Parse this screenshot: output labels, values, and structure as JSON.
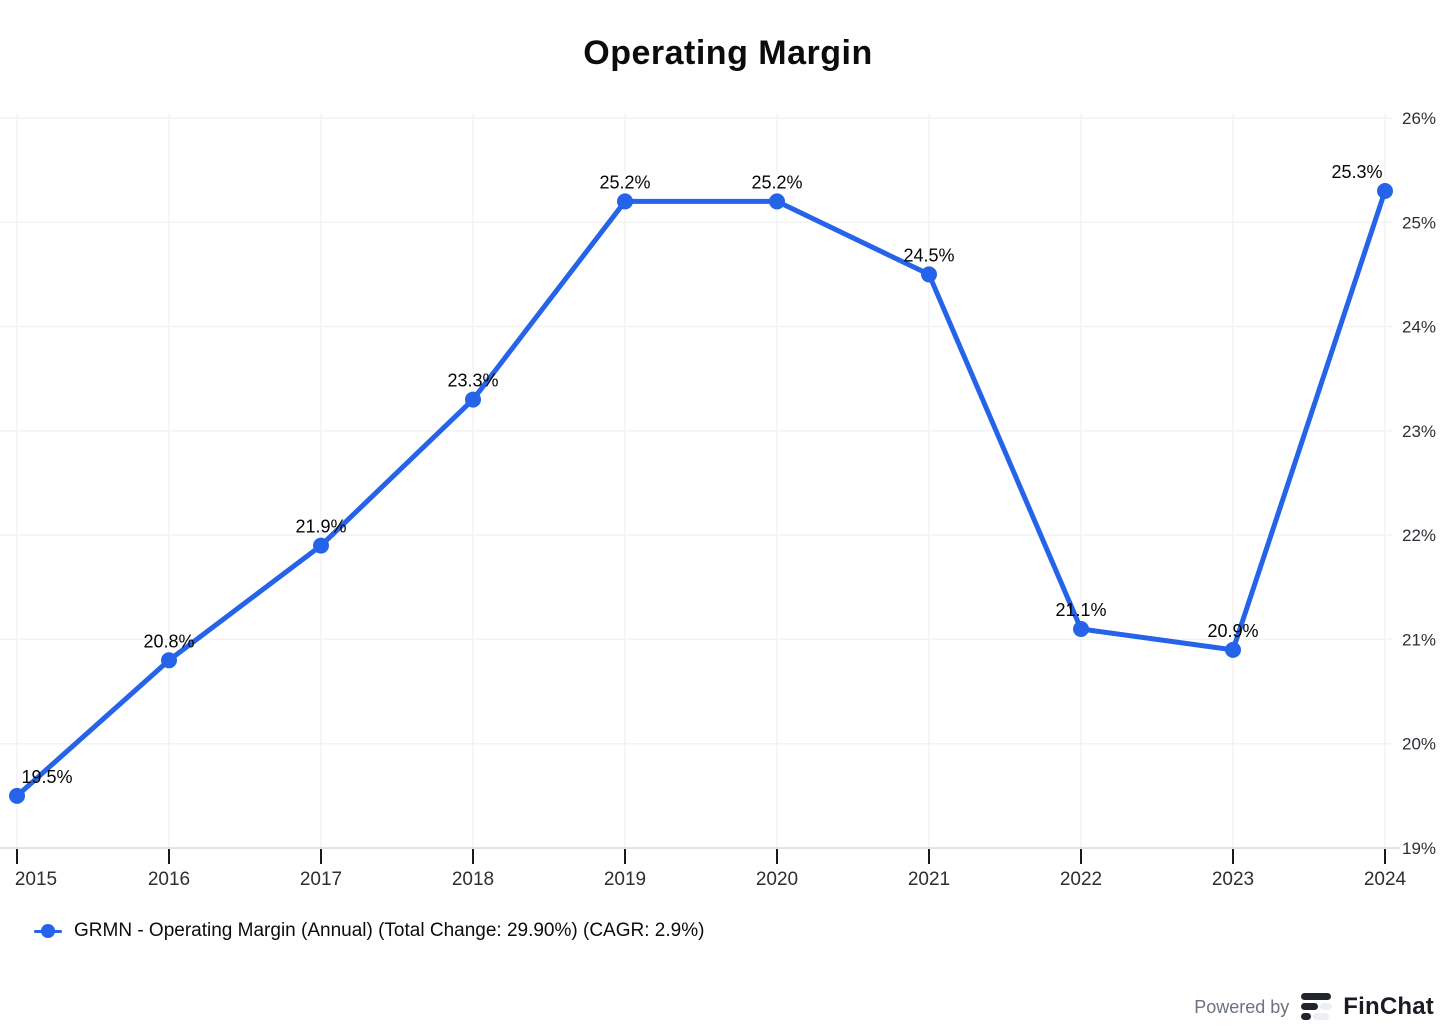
{
  "title": "Operating Margin",
  "chart_data": {
    "type": "line",
    "title": "Operating Margin",
    "x": [
      "2015",
      "2016",
      "2017",
      "2018",
      "2019",
      "2020",
      "2021",
      "2022",
      "2023",
      "2024"
    ],
    "values": [
      19.5,
      20.8,
      21.9,
      23.3,
      25.2,
      25.2,
      24.5,
      21.1,
      20.9,
      25.3
    ],
    "point_labels": [
      "19.5%",
      "20.8%",
      "21.9%",
      "23.3%",
      "25.2%",
      "25.2%",
      "24.5%",
      "21.1%",
      "20.9%",
      "25.3%"
    ],
    "y_tick_values": [
      19,
      20,
      21,
      22,
      23,
      24,
      25,
      26
    ],
    "y_tick_labels": [
      "19%",
      "20%",
      "21%",
      "22%",
      "23%",
      "24%",
      "25%",
      "26%"
    ],
    "ylim": [
      19,
      26
    ],
    "grid": true,
    "y_axis_side": "right",
    "line_color": "#2563e8",
    "legend": {
      "label": "GRMN - Operating Margin (Annual) (Total Change: 29.90%) (CAGR: 2.9%)",
      "position": "bottom-left"
    }
  },
  "footer": {
    "powered_by": "Powered by",
    "brand": "FinChat"
  },
  "colors": {
    "line": "#2563e8",
    "grid_line": "#f3f3f4",
    "axis_line": "#e3e3e5",
    "tick": "#1a1a1a",
    "axis_text": "#2e2f36",
    "label_text": "#050505",
    "muted_text": "#6b7280"
  }
}
